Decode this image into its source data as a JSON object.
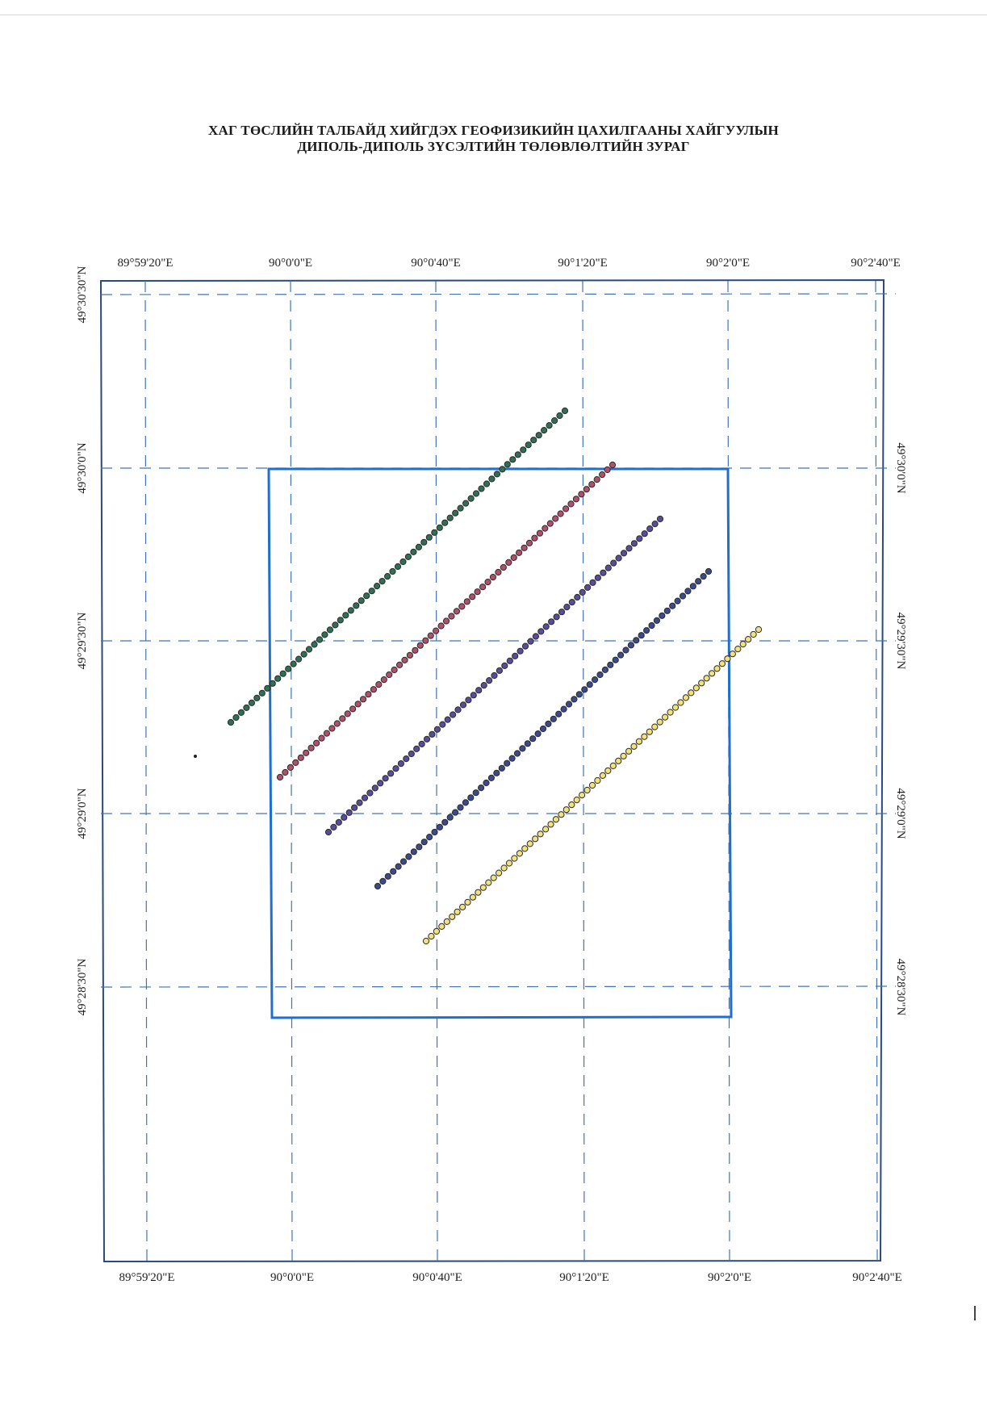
{
  "title": {
    "line1": "ХАГ ТӨСЛИЙН ТАЛБАЙД ХИЙГДЭХ ГЕОФИЗИКИЙН ЦАХИЛГААНЫ ХАЙГУУЛЫН",
    "line2": "ДИПОЛЬ-ДИПОЛЬ ЗҮСЭЛТИЙН ТӨЛӨВЛӨЛТИЙН ЗУРАГ"
  },
  "graticule": {
    "longitude_labels": [
      "89°59'20\"E",
      "90°0'0\"E",
      "90°0'40\"E",
      "90°1'20\"E",
      "90°2'0\"E",
      "90°2'40\"E"
    ],
    "latitude_labels": [
      "49°30'30\"N",
      "49°30'0\"N",
      "49°29'30\"N",
      "49°29'0\"N",
      "49°28'30\"N"
    ]
  },
  "colors": {
    "frame": "#2b4a7a",
    "grid": "#3f73b8",
    "survey_area": "#1f6fd0",
    "lines": [
      "#2f6f55",
      "#b0506a",
      "#5a4c9a",
      "#3a4a8a",
      "#d7c23a"
    ]
  },
  "profiles": [
    {
      "points": 65,
      "fill": "#2f6f55"
    },
    {
      "points": 65,
      "fill": "#b0506a"
    },
    {
      "points": 65,
      "fill": "#5a4c9a"
    },
    {
      "points": 65,
      "fill": "#3a4a8a"
    },
    {
      "points": 65,
      "fill": "#f3e27a"
    }
  ]
}
